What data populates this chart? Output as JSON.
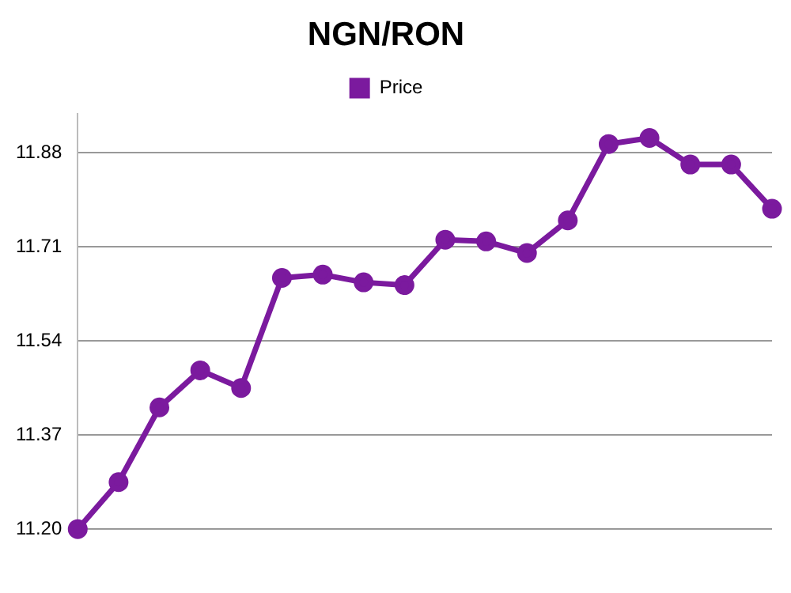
{
  "chart_data": {
    "type": "line",
    "title": "NGN/RON",
    "categories": [
      null,
      null,
      null,
      null,
      null,
      null,
      null,
      null,
      null,
      null,
      null,
      null,
      null,
      null,
      null,
      null,
      null,
      null
    ],
    "series": [
      {
        "name": "Price",
        "color": "#7b1a9e",
        "values": [
          11.2,
          11.285,
          11.42,
          11.487,
          11.455,
          11.654,
          11.66,
          11.646,
          11.641,
          11.723,
          11.72,
          11.699,
          11.758,
          11.896,
          11.907,
          11.859,
          11.859,
          11.779
        ]
      }
    ],
    "ylim": [
      11.2,
      11.95
    ],
    "yticks": [
      {
        "value": 11.2,
        "label": "11.20"
      },
      11.37,
      11.54,
      11.71,
      11.88
    ],
    "grid": "y",
    "legend": "top",
    "marker": "circle",
    "line_style": "solid"
  }
}
